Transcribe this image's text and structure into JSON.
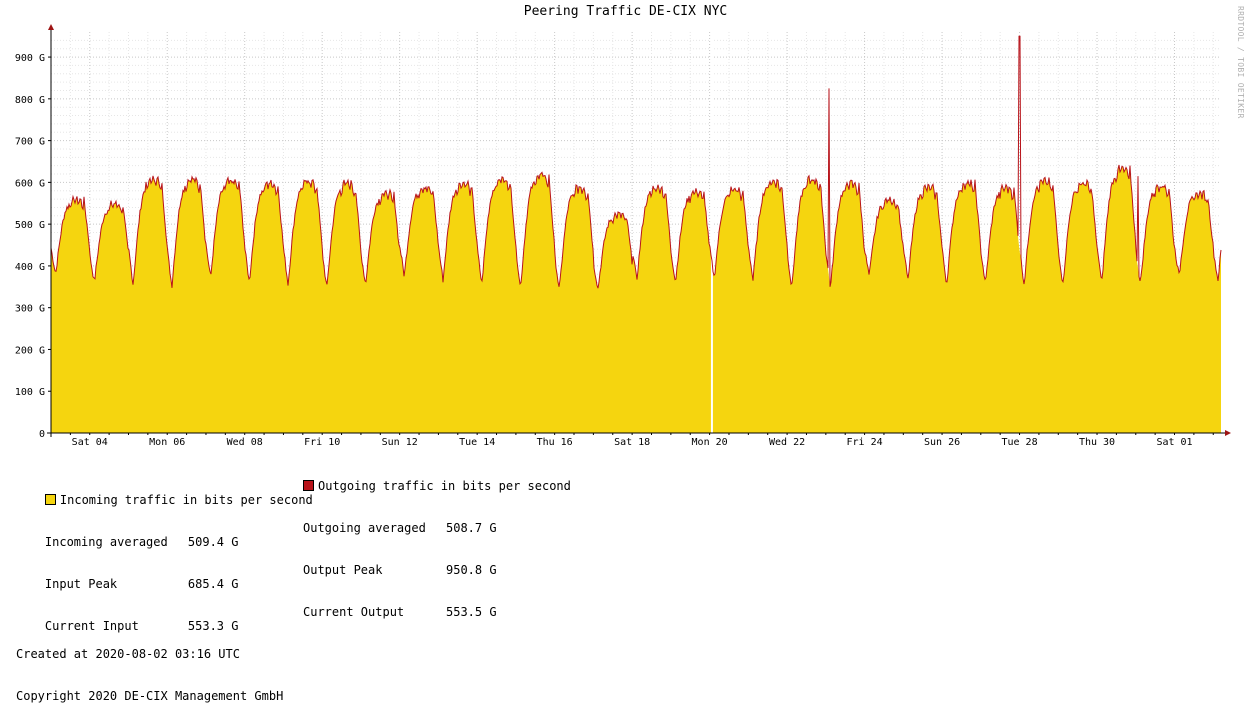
{
  "watermark": "RRDTOOL / TOBI OETIKER",
  "colors": {
    "incoming": "#f5d50f",
    "outgoing": "#b8131a",
    "grid_major": "#c8c8c8",
    "grid_minor": "#e6e6e6",
    "axis": "#000000",
    "arrow": "#9e1414"
  },
  "legend": {
    "incoming_label": "Incoming traffic in bits per second",
    "outgoing_label": "Outgoing traffic in bits per second",
    "incoming_averaged_label": "Incoming averaged",
    "incoming_averaged_value": "509.4 G",
    "input_peak_label": "Input Peak",
    "input_peak_value": "685.4 G",
    "current_input_label": "Current Input",
    "current_input_value": "553.3 G",
    "outgoing_averaged_label": "Outgoing averaged",
    "outgoing_averaged_value": "508.7 G",
    "output_peak_label": "Output Peak",
    "output_peak_value": "950.8 G",
    "current_output_label": "Current Output",
    "current_output_value": "553.5 G",
    "created": "Created at 2020-08-02 03:16 UTC",
    "copyright": "Copyright 2020 DE-CIX Management GmbH"
  },
  "chart_data": {
    "type": "area",
    "title": "Peering Traffic DE-CIX NYC",
    "xlabel": "",
    "ylabel": "",
    "ylim": [
      0,
      960
    ],
    "x_range_days": [
      0,
      30.2
    ],
    "yticks": [
      {
        "value": 0,
        "label": "0"
      },
      {
        "value": 100,
        "label": "100 G"
      },
      {
        "value": 200,
        "label": "200 G"
      },
      {
        "value": 300,
        "label": "300 G"
      },
      {
        "value": 400,
        "label": "400 G"
      },
      {
        "value": 500,
        "label": "500 G"
      },
      {
        "value": 600,
        "label": "600 G"
      },
      {
        "value": 700,
        "label": "700 G"
      },
      {
        "value": 800,
        "label": "800 G"
      },
      {
        "value": 900,
        "label": "900 G"
      }
    ],
    "xticks": [
      {
        "day": 1,
        "label": "Sat 04"
      },
      {
        "day": 3,
        "label": "Mon 06"
      },
      {
        "day": 5,
        "label": "Wed 08"
      },
      {
        "day": 7,
        "label": "Fri 10"
      },
      {
        "day": 9,
        "label": "Sun 12"
      },
      {
        "day": 11,
        "label": "Tue 14"
      },
      {
        "day": 13,
        "label": "Thu 16"
      },
      {
        "day": 15,
        "label": "Sat 18"
      },
      {
        "day": 17,
        "label": "Mon 20"
      },
      {
        "day": 19,
        "label": "Wed 22"
      },
      {
        "day": 21,
        "label": "Fri 24"
      },
      {
        "day": 23,
        "label": "Sun 26"
      },
      {
        "day": 25,
        "label": "Tue 28"
      },
      {
        "day": 27,
        "label": "Thu 30"
      },
      {
        "day": 29,
        "label": "Sat 01"
      }
    ],
    "grid": true,
    "legend_position": "bottom",
    "series": [
      {
        "name": "Incoming traffic in bits per second",
        "style": "filled area",
        "daily_min": [
          380,
          360,
          355,
          350,
          370,
          360,
          355,
          345,
          355,
          375,
          365,
          355,
          345,
          340,
          345,
          365,
          360,
          370,
          365,
          345,
          345,
          375,
          365,
          355,
          355,
          355,
          355,
          355,
          355,
          375,
          365
        ],
        "daily_max": [
          560,
          550,
          610,
          610,
          605,
          600,
          605,
          600,
          575,
          590,
          600,
          610,
          620,
          590,
          525,
          590,
          580,
          585,
          605,
          610,
          600,
          560,
          590,
          600,
          590,
          605,
          600,
          635,
          595,
          575,
          575
        ],
        "gaps": [
          {
            "day": 17.06
          }
        ],
        "peak": 685.4,
        "current": 553.3
      },
      {
        "name": "Outgoing traffic in bits per second",
        "style": "line",
        "daily_min": [
          380,
          360,
          355,
          350,
          370,
          360,
          355,
          345,
          355,
          375,
          365,
          355,
          345,
          340,
          345,
          365,
          360,
          370,
          365,
          345,
          345,
          375,
          365,
          355,
          355,
          355,
          355,
          355,
          355,
          375,
          365
        ],
        "daily_max": [
          560,
          550,
          610,
          610,
          605,
          600,
          605,
          600,
          575,
          590,
          600,
          610,
          620,
          590,
          525,
          590,
          580,
          585,
          605,
          610,
          600,
          560,
          590,
          600,
          590,
          605,
          600,
          635,
          595,
          575,
          575
        ],
        "spikes": [
          {
            "day": 20.08,
            "value": 825
          },
          {
            "day": 25.0,
            "value": 950
          },
          {
            "day": 28.05,
            "value": 615
          }
        ],
        "peak": 950.8,
        "current": 553.5
      }
    ]
  }
}
